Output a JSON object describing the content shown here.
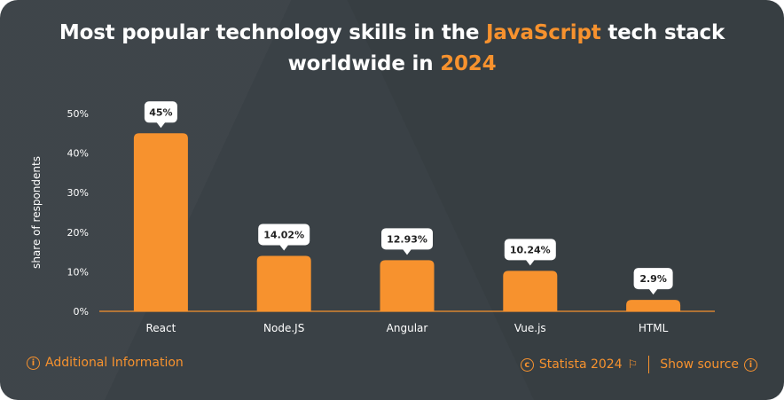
{
  "title": {
    "part1": "Most popular technology skills in the ",
    "highlight1": "JavaScript",
    "part2": " tech stack",
    "part3": "worldwide in ",
    "highlight2": "2024"
  },
  "colors": {
    "bar": "#f7922e",
    "background": "#3a4146",
    "accent": "#f7922e"
  },
  "chart_data": {
    "type": "bar",
    "categories": [
      "React",
      "Node.JS",
      "Angular",
      "Vue.js",
      "HTML"
    ],
    "values": [
      45,
      14.02,
      12.93,
      10.24,
      2.9
    ],
    "value_labels": [
      "45%",
      "14.02%",
      "12.93%",
      "10.24%",
      "2.9%"
    ],
    "ylabel": "share of respondents",
    "ylim": [
      0,
      50
    ],
    "yticks": [
      0,
      10,
      20,
      30,
      40,
      50
    ],
    "ytick_labels": [
      "0%",
      "10%",
      "20%",
      "30%",
      "40%",
      "50%"
    ],
    "grid": false
  },
  "footer": {
    "additional_info": "Additional Information",
    "info_icon": "info-icon",
    "copyright_icon": "copyright-icon",
    "statista": "Statista 2024",
    "flag_icon": "flag-icon",
    "show_source": "Show source"
  }
}
